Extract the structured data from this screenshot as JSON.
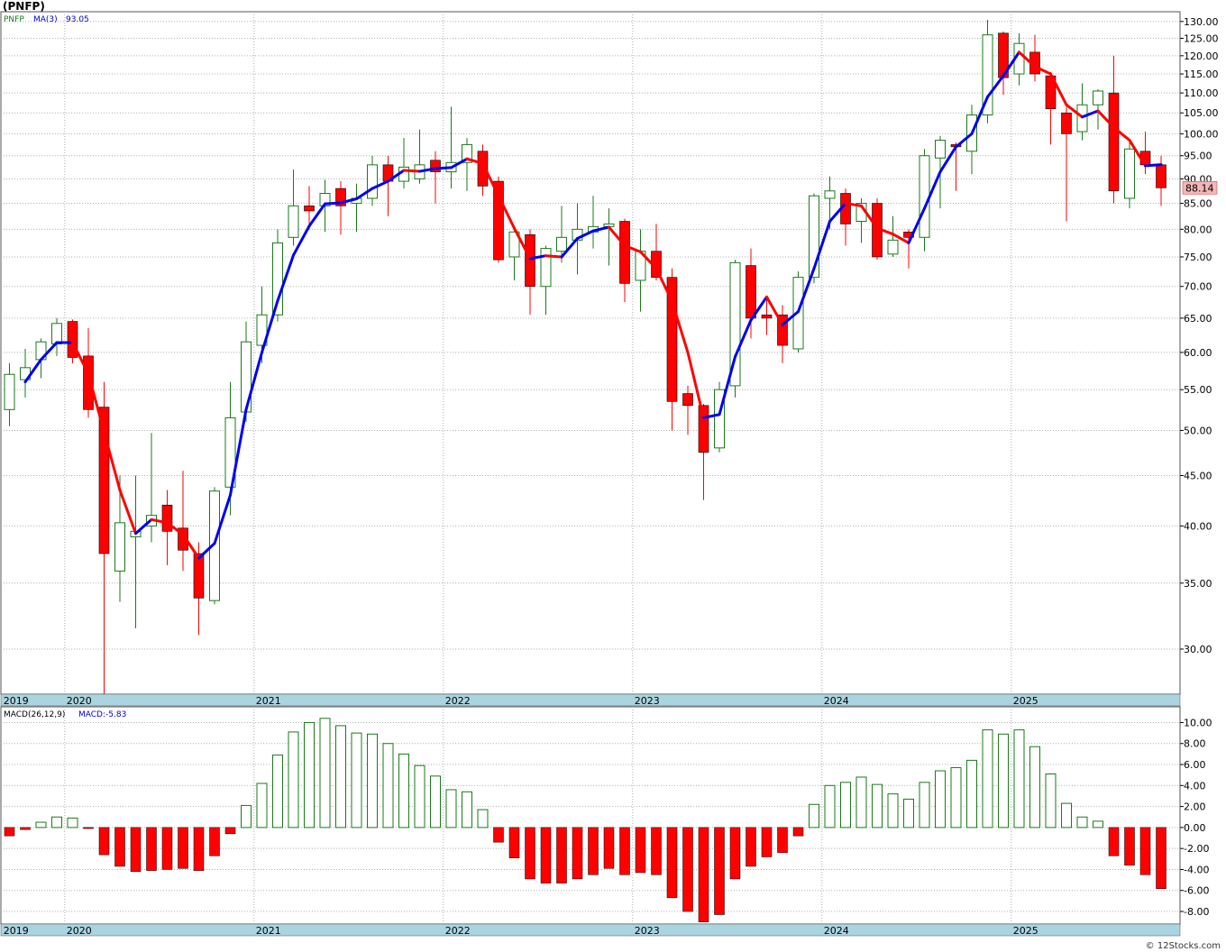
{
  "title": "(PNFP)",
  "footer": "© 12Stocks.com",
  "price_legend": {
    "symbol": "PNFP",
    "ma_label": "MA(3)",
    "ma_value": "93.05"
  },
  "macd_legend": {
    "label": "MACD(26,12,9)",
    "value_label": "MACD:-5.83"
  },
  "last_price_badge": "88.14",
  "colors": {
    "up": "#1a7a1a",
    "down": "#ff0000",
    "ma_up": "#0000ee",
    "ma_down": "#ff0000",
    "timeline": "#a9d4e0",
    "grid": "#b0b0b0"
  },
  "chart_data": [
    {
      "type": "candlestick",
      "interval": "monthly",
      "y_scale": "log",
      "ylim": [
        27,
        133
      ],
      "yticks": [
        "30.00",
        "35.00",
        "40.00",
        "45.00",
        "50.00",
        "55.00",
        "60.00",
        "65.00",
        "70.00",
        "75.00",
        "80.00",
        "85.00",
        "90.00",
        "95.00",
        "100.00",
        "105.00",
        "110.00",
        "115.00",
        "120.00",
        "125.00",
        "130.00"
      ],
      "year_labels": [
        {
          "label": "2019",
          "month_index": 0
        },
        {
          "label": "2020",
          "month_index": 4
        },
        {
          "label": "2021",
          "month_index": 16
        },
        {
          "label": "2022",
          "month_index": 28
        },
        {
          "label": "2023",
          "month_index": 40
        },
        {
          "label": "2024",
          "month_index": 52
        },
        {
          "label": "2025",
          "month_index": 64
        }
      ],
      "candles": [
        {
          "o": 52.5,
          "h": 58.5,
          "l": 50.5,
          "c": 57.0
        },
        {
          "o": 56.3,
          "h": 60.5,
          "l": 54.0,
          "c": 57.9
        },
        {
          "o": 59.0,
          "h": 62.0,
          "l": 56.5,
          "c": 61.5
        },
        {
          "o": 61.2,
          "h": 65.0,
          "l": 59.5,
          "c": 64.2
        },
        {
          "o": 64.5,
          "h": 64.8,
          "l": 58.5,
          "c": 59.3
        },
        {
          "o": 59.5,
          "h": 63.5,
          "l": 51.5,
          "c": 52.5
        },
        {
          "o": 52.8,
          "h": 56.0,
          "l": 27.0,
          "c": 37.5
        },
        {
          "o": 36.0,
          "h": 45.0,
          "l": 33.5,
          "c": 40.3
        },
        {
          "o": 39.0,
          "h": 45.0,
          "l": 31.5,
          "c": 39.5
        },
        {
          "o": 40.0,
          "h": 49.7,
          "l": 38.5,
          "c": 41.0
        },
        {
          "o": 42.0,
          "h": 43.5,
          "l": 36.5,
          "c": 39.5
        },
        {
          "o": 39.8,
          "h": 45.5,
          "l": 36.0,
          "c": 37.8
        },
        {
          "o": 37.5,
          "h": 38.5,
          "l": 31.0,
          "c": 33.8
        },
        {
          "o": 33.6,
          "h": 43.8,
          "l": 33.3,
          "c": 43.4
        },
        {
          "o": 43.8,
          "h": 56.0,
          "l": 41.0,
          "c": 51.5
        },
        {
          "o": 52.2,
          "h": 64.5,
          "l": 51.0,
          "c": 61.5
        },
        {
          "o": 61.0,
          "h": 70.0,
          "l": 58.5,
          "c": 65.5
        },
        {
          "o": 65.5,
          "h": 80.0,
          "l": 64.5,
          "c": 77.5
        },
        {
          "o": 78.5,
          "h": 92.0,
          "l": 77.0,
          "c": 84.5
        },
        {
          "o": 84.5,
          "h": 88.5,
          "l": 80.0,
          "c": 83.5
        },
        {
          "o": 84.5,
          "h": 89.8,
          "l": 79.5,
          "c": 87.0
        },
        {
          "o": 88.0,
          "h": 89.5,
          "l": 79.0,
          "c": 84.5
        },
        {
          "o": 85.0,
          "h": 89.0,
          "l": 79.5,
          "c": 86.0
        },
        {
          "o": 86.0,
          "h": 95.0,
          "l": 84.5,
          "c": 93.0
        },
        {
          "o": 93.0,
          "h": 95.0,
          "l": 82.5,
          "c": 89.5
        },
        {
          "o": 89.5,
          "h": 99.0,
          "l": 88.0,
          "c": 92.5
        },
        {
          "o": 90.0,
          "h": 101.0,
          "l": 89.0,
          "c": 93.0
        },
        {
          "o": 94.0,
          "h": 96.0,
          "l": 85.0,
          "c": 91.5
        },
        {
          "o": 91.5,
          "h": 106.5,
          "l": 88.0,
          "c": 93.5
        },
        {
          "o": 93.5,
          "h": 99.0,
          "l": 87.5,
          "c": 97.5
        },
        {
          "o": 96.0,
          "h": 97.5,
          "l": 86.5,
          "c": 88.5
        },
        {
          "o": 89.5,
          "h": 90.5,
          "l": 74.0,
          "c": 74.5
        },
        {
          "o": 75.0,
          "h": 80.0,
          "l": 71.0,
          "c": 79.5
        },
        {
          "o": 79.0,
          "h": 80.0,
          "l": 65.5,
          "c": 70.0
        },
        {
          "o": 70.0,
          "h": 77.0,
          "l": 65.5,
          "c": 76.5
        },
        {
          "o": 76.0,
          "h": 84.5,
          "l": 74.0,
          "c": 78.5
        },
        {
          "o": 78.0,
          "h": 85.0,
          "l": 72.0,
          "c": 80.0
        },
        {
          "o": 79.5,
          "h": 86.5,
          "l": 76.5,
          "c": 80.5
        },
        {
          "o": 80.5,
          "h": 84.0,
          "l": 73.5,
          "c": 81.0
        },
        {
          "o": 81.5,
          "h": 82.0,
          "l": 67.5,
          "c": 70.5
        },
        {
          "o": 71.0,
          "h": 80.0,
          "l": 66.0,
          "c": 76.0
        },
        {
          "o": 76.0,
          "h": 81.0,
          "l": 71.0,
          "c": 71.5
        },
        {
          "o": 71.5,
          "h": 73.0,
          "l": 50.0,
          "c": 53.5
        },
        {
          "o": 54.5,
          "h": 55.5,
          "l": 49.5,
          "c": 53.0
        },
        {
          "o": 53.0,
          "h": 53.2,
          "l": 42.5,
          "c": 47.5
        },
        {
          "o": 48.0,
          "h": 56.0,
          "l": 47.5,
          "c": 55.0
        },
        {
          "o": 55.5,
          "h": 74.5,
          "l": 54.0,
          "c": 74.0
        },
        {
          "o": 73.5,
          "h": 76.5,
          "l": 62.0,
          "c": 65.0
        },
        {
          "o": 65.5,
          "h": 68.0,
          "l": 62.5,
          "c": 65.0
        },
        {
          "o": 65.5,
          "h": 67.0,
          "l": 58.5,
          "c": 61.0
        },
        {
          "o": 60.5,
          "h": 72.5,
          "l": 60.0,
          "c": 71.5
        },
        {
          "o": 71.5,
          "h": 87.0,
          "l": 70.5,
          "c": 86.5
        },
        {
          "o": 86.0,
          "h": 90.5,
          "l": 80.0,
          "c": 87.5
        },
        {
          "o": 87.0,
          "h": 88.0,
          "l": 77.0,
          "c": 81.0
        },
        {
          "o": 81.5,
          "h": 86.0,
          "l": 77.5,
          "c": 85.0
        },
        {
          "o": 85.0,
          "h": 86.0,
          "l": 74.5,
          "c": 75.0
        },
        {
          "o": 75.5,
          "h": 82.5,
          "l": 75.0,
          "c": 78.0
        },
        {
          "o": 79.5,
          "h": 80.0,
          "l": 73.0,
          "c": 78.5
        },
        {
          "o": 78.5,
          "h": 96.5,
          "l": 76.0,
          "c": 95.0
        },
        {
          "o": 94.5,
          "h": 99.5,
          "l": 84.0,
          "c": 98.5
        },
        {
          "o": 97.5,
          "h": 98.0,
          "l": 87.5,
          "c": 97.0
        },
        {
          "o": 96.0,
          "h": 107.0,
          "l": 91.0,
          "c": 104.5
        },
        {
          "o": 104.5,
          "h": 130.5,
          "l": 102.5,
          "c": 126.0
        },
        {
          "o": 126.5,
          "h": 127.0,
          "l": 109.5,
          "c": 114.0
        },
        {
          "o": 115.0,
          "h": 126.5,
          "l": 112.0,
          "c": 123.5
        },
        {
          "o": 121.0,
          "h": 126.0,
          "l": 113.0,
          "c": 115.0
        },
        {
          "o": 114.5,
          "h": 115.5,
          "l": 97.5,
          "c": 106.0
        },
        {
          "o": 105.0,
          "h": 106.5,
          "l": 81.5,
          "c": 100.0
        },
        {
          "o": 100.5,
          "h": 112.5,
          "l": 98.5,
          "c": 107.0
        },
        {
          "o": 107.0,
          "h": 111.0,
          "l": 101.0,
          "c": 110.5
        },
        {
          "o": 110.0,
          "h": 120.0,
          "l": 85.0,
          "c": 87.5
        },
        {
          "o": 86.0,
          "h": 98.0,
          "l": 84.0,
          "c": 96.5
        },
        {
          "o": 96.0,
          "h": 100.5,
          "l": 91.0,
          "c": 93.0
        },
        {
          "o": 93.0,
          "h": 95.0,
          "l": 84.5,
          "c": 88.14
        }
      ],
      "moving_average": {
        "period": 3,
        "start_index": 1,
        "values": [
          56.0,
          59.0,
          61.4,
          61.4,
          57.1,
          49.8,
          43.5,
          39.3,
          40.6,
          40.3,
          39.2,
          37.1,
          38.4,
          43.0,
          52.5,
          60.0,
          67.7,
          75.3,
          80.6,
          84.9,
          85.1,
          85.9,
          88.0,
          89.5,
          91.8,
          91.6,
          92.2,
          92.4,
          94.3,
          93.3,
          86.5,
          80.2,
          74.7,
          75.2,
          75.0,
          78.3,
          79.7,
          80.4,
          77.0,
          75.9,
          73.0,
          67.6,
          60.0,
          51.5,
          51.9,
          59.4,
          64.7,
          68.3,
          64.0,
          66.0,
          73.0,
          81.5,
          85.0,
          84.5,
          80.2,
          79.1,
          77.5,
          84.0,
          91.5,
          97.0,
          100.0,
          109.0,
          114.5,
          121.0,
          117.0,
          115.0,
          107.0,
          104.0,
          105.5,
          101.5,
          98.5,
          92.8,
          93.05
        ]
      }
    },
    {
      "type": "bar",
      "title": "MACD(26,12,9)",
      "ylim": [
        -9.2,
        11.5
      ],
      "yticks": [
        "10.00",
        "8.00",
        "6.00",
        "4.00",
        "2.00",
        "0.00",
        "-2.00",
        "-4.00",
        "-6.00",
        "-8.00"
      ],
      "values": [
        -0.8,
        -0.2,
        0.5,
        1.0,
        0.9,
        -0.1,
        -2.6,
        -3.7,
        -4.2,
        -4.1,
        -4.0,
        -3.9,
        -4.1,
        -2.7,
        -0.6,
        2.1,
        4.2,
        6.9,
        9.1,
        10.0,
        10.4,
        9.7,
        9.0,
        8.9,
        8.0,
        7.0,
        5.9,
        4.9,
        3.6,
        3.4,
        1.7,
        -1.4,
        -2.9,
        -4.9,
        -5.3,
        -5.3,
        -4.9,
        -4.5,
        -3.9,
        -4.5,
        -4.3,
        -4.5,
        -6.7,
        -8.0,
        -9.0,
        -8.3,
        -4.9,
        -3.7,
        -2.8,
        -2.4,
        -0.8,
        2.2,
        4.0,
        4.3,
        4.8,
        4.1,
        3.2,
        2.7,
        4.3,
        5.4,
        5.7,
        6.4,
        9.3,
        8.9,
        9.3,
        7.7,
        5.1,
        2.3,
        1.0,
        0.6,
        -2.7,
        -3.6,
        -4.5,
        -5.83
      ]
    }
  ]
}
